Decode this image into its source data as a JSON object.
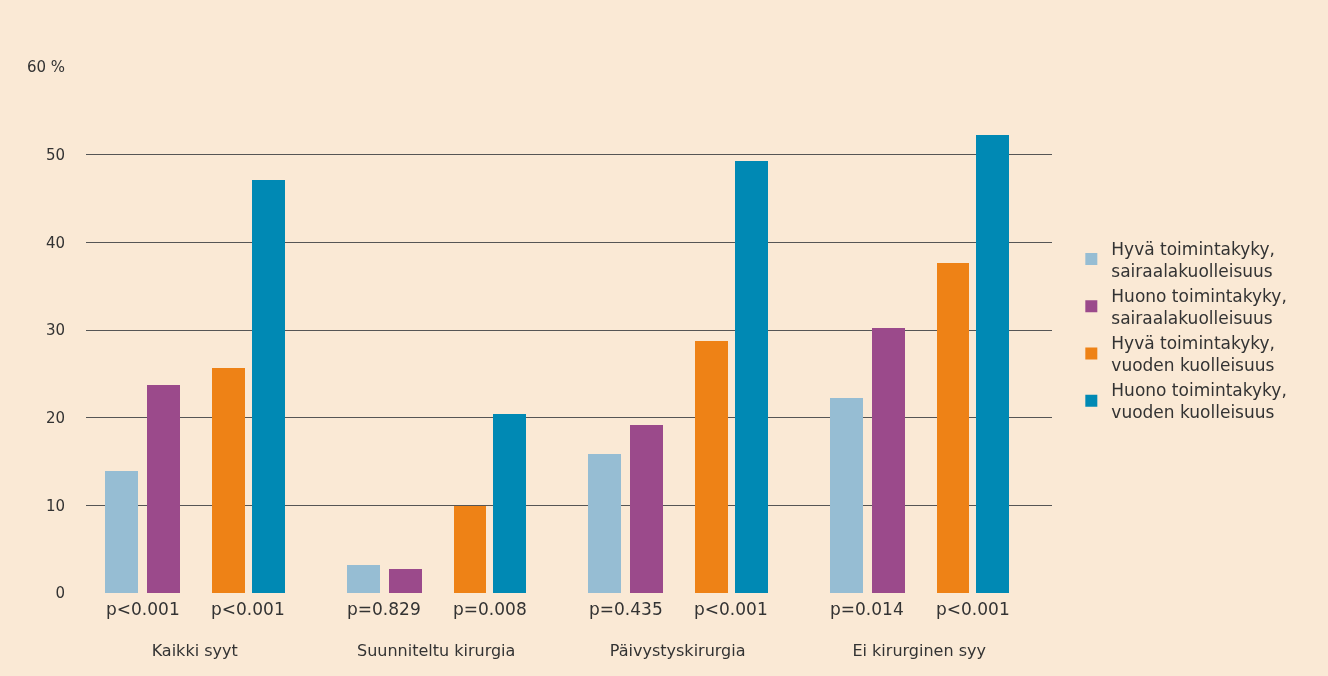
{
  "chart_data": {
    "type": "bar",
    "categories": [
      "Kaikki syyt",
      "Suunniteltu kirurgia",
      "Päivystyskirurgia",
      "Ei kirurginen syy"
    ],
    "series": [
      {
        "name": "Hyvä toimintakyky,\nsairaalakuolleisuus",
        "color": "#96bdd3",
        "values": [
          13.9,
          3.2,
          15.8,
          22.2
        ]
      },
      {
        "name": "Huono toimintakyky,\nsairaalakuolleisuus",
        "color": "#9b4a8b",
        "values": [
          23.7,
          2.7,
          19.2,
          30.2
        ]
      },
      {
        "name": "Hyvä toimintakyky,\nvuoden kuolleisuus",
        "color": "#ee8216",
        "values": [
          25.7,
          9.9,
          28.7,
          37.6
        ]
      },
      {
        "name": "Huono toimintakyky,\nvuoden kuolleisuus",
        "color": "#0089b4",
        "values": [
          47.1,
          20.4,
          49.3,
          52.2
        ]
      }
    ],
    "annotations": [
      "p<0.001",
      "p<0.001",
      "p=0.829",
      "p=0.008",
      "p=0.435",
      "p<0.001",
      "p=0.014",
      "p<0.001"
    ],
    "ylim": [
      0,
      60
    ],
    "yticks": [
      0,
      10,
      20,
      30,
      40,
      50,
      {
        "value": 60,
        "label": "60 %"
      }
    ],
    "grid": "y",
    "legend": "right"
  }
}
